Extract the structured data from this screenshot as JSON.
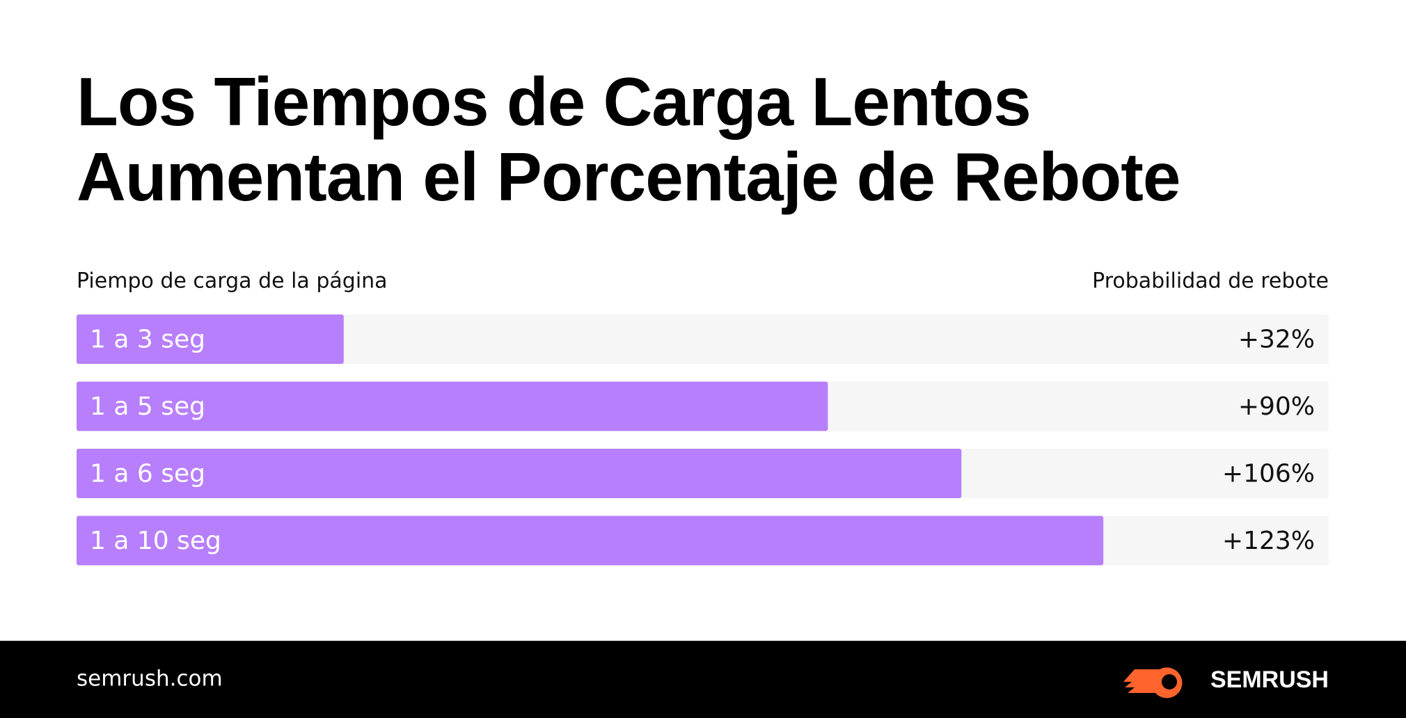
{
  "chart_data": {
    "type": "bar",
    "orientation": "horizontal",
    "title": "Los Tiempos de Carga Lentos Aumentan el Porcentaje de Rebote",
    "category_header": "Piempo de carga de la página",
    "value_header": "Probabilidad de rebote",
    "categories": [
      "1 a 3 seg",
      "1 a 5 seg",
      "1 a 6 seg",
      "1 a 10 seg"
    ],
    "values": [
      32,
      90,
      106,
      123
    ],
    "value_labels": [
      "+32%",
      "+90%",
      "+106%",
      "+123%"
    ],
    "color": "#b77ffc",
    "track_color": "#f6f6f6",
    "xlim": [
      0,
      150
    ]
  },
  "footer": {
    "site": "semrush.com",
    "brand": "SEMRUSH"
  }
}
